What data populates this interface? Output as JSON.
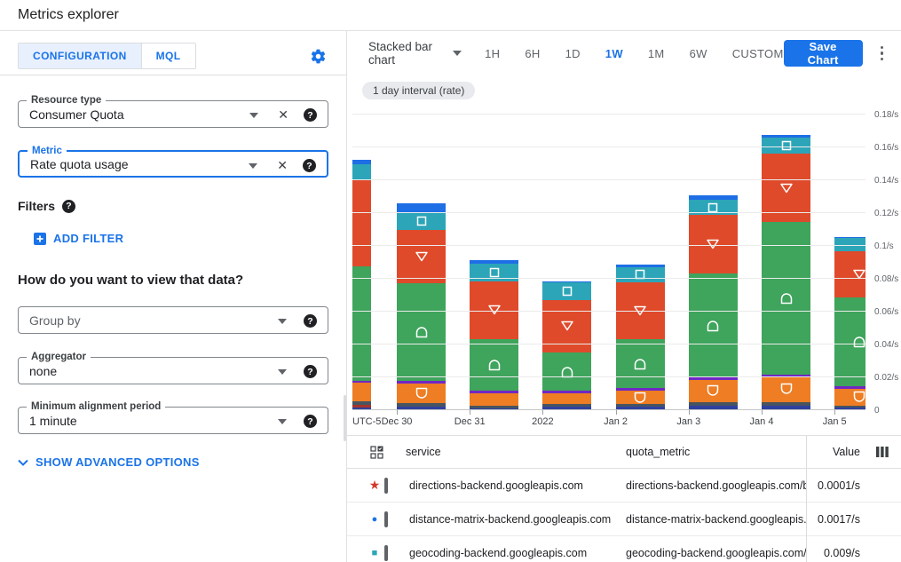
{
  "header": {
    "title": "Metrics explorer"
  },
  "config_panel": {
    "tabs": [
      {
        "label": "CONFIGURATION",
        "active": true
      },
      {
        "label": "MQL",
        "active": false
      }
    ],
    "resource_type": {
      "label": "Resource type",
      "value": "Consumer Quota"
    },
    "metric": {
      "label": "Metric",
      "value": "Rate quota usage"
    },
    "filters_label": "Filters",
    "add_filter_label": "ADD FILTER",
    "view_question": "How do you want to view that data?",
    "group_by": {
      "placeholder": "Group by"
    },
    "aggregator": {
      "label": "Aggregator",
      "value": "none"
    },
    "min_alignment": {
      "label": "Minimum alignment period",
      "value": "1 minute"
    },
    "advanced_label": "SHOW ADVANCED OPTIONS"
  },
  "toolbar": {
    "chart_type": "Stacked bar chart",
    "ranges": [
      "1H",
      "6H",
      "1D",
      "1W",
      "1M",
      "6W",
      "CUSTOM"
    ],
    "active_range": "1W",
    "save_label": "Save Chart"
  },
  "chip": "1 day interval (rate)",
  "icons": {
    "settings": "gear",
    "overflow": "kebab-vertical",
    "help": "question-circle",
    "clear": "x",
    "dropdown": "caret-down",
    "add_filter": "plus-square",
    "advanced": "chevron-down",
    "table_header": "select-series-grid",
    "columns": "column-chooser"
  },
  "colors": {
    "accent": "#1a73e8",
    "tab_active_bg": "#e8f0fe",
    "chip_bg": "#e8eaed"
  },
  "chart_data": {
    "type": "bar",
    "stacked": true,
    "unit": "/s",
    "ylim": [
      0,
      0.18
    ],
    "ytick_labels": [
      "0",
      "0.02/s",
      "0.04/s",
      "0.06/s",
      "0.08/s",
      "0.1/s",
      "0.12/s",
      "0.14/s",
      "0.16/s",
      "0.18/s"
    ],
    "x_prefix_label": "UTC-5",
    "categories": [
      "Dec 30",
      "Dec 31",
      "2022",
      "Jan 2",
      "Jan 3",
      "Jan 4",
      "Jan 5"
    ],
    "grid": true,
    "legend_position": "table-below",
    "series_colors": {
      "navy": "#30409f",
      "darkred": "#a5332b",
      "slate": "#475561",
      "orange": "#ee7d23",
      "purple": "#7127c4",
      "green": "#3fa45c",
      "red": "#df4a2b",
      "teal": "#2ca5b8",
      "blue": "#1e6ee6"
    },
    "bars": [
      {
        "category": "",
        "clipped": "left",
        "segments": [
          [
            "navy",
            0.0015
          ],
          [
            "darkred",
            0.0015
          ],
          [
            "slate",
            0.0025
          ],
          [
            "orange",
            0.011
          ],
          [
            "purple",
            0.0015
          ],
          [
            "green",
            0.0695
          ],
          [
            "red",
            0.053
          ],
          [
            "teal",
            0.009
          ],
          [
            "blue",
            0.003
          ]
        ]
      },
      {
        "category": "Dec 30",
        "segments": [
          [
            "navy",
            0.002
          ],
          [
            "slate",
            0.0022
          ],
          [
            "orange",
            0.0119,
            "shield"
          ],
          [
            "purple",
            0.0016
          ],
          [
            "green",
            0.0595,
            "dome"
          ],
          [
            "red",
            0.0324,
            "triangle-down"
          ],
          [
            "teal",
            0.0108,
            "square"
          ],
          [
            "blue",
            0.0054
          ]
        ]
      },
      {
        "category": "Dec 31",
        "segments": [
          [
            "navy",
            0.0013
          ],
          [
            "slate",
            0.0016
          ],
          [
            "orange",
            0.0076
          ],
          [
            "purple",
            0.0016
          ],
          [
            "green",
            0.0312,
            "dome"
          ],
          [
            "red",
            0.0351,
            "triangle-down"
          ],
          [
            "teal",
            0.0108,
            "square"
          ],
          [
            "blue",
            0.0021
          ]
        ]
      },
      {
        "category": "2022",
        "segments": [
          [
            "navy",
            0.002
          ],
          [
            "slate",
            0.0016
          ],
          [
            "orange",
            0.0065
          ],
          [
            "purple",
            0.0016
          ],
          [
            "green",
            0.0232,
            "dome"
          ],
          [
            "red",
            0.0324,
            "triangle-down"
          ],
          [
            "teal",
            0.0103,
            "square"
          ],
          [
            "blue",
            0.001
          ]
        ]
      },
      {
        "category": "Jan 2",
        "segments": [
          [
            "navy",
            0.002
          ],
          [
            "slate",
            0.0016
          ],
          [
            "orange",
            0.0081,
            "shield"
          ],
          [
            "purple",
            0.0016
          ],
          [
            "green",
            0.0297,
            "dome"
          ],
          [
            "red",
            0.0351,
            "triangle-down"
          ],
          [
            "teal",
            0.0092,
            "square"
          ],
          [
            "blue",
            0.0016
          ]
        ]
      },
      {
        "category": "Jan 3",
        "segments": [
          [
            "navy",
            0.0027
          ],
          [
            "slate",
            0.0022
          ],
          [
            "orange",
            0.0135,
            "shield"
          ],
          [
            "purple",
            0.0016
          ],
          [
            "green",
            0.0632,
            "dome"
          ],
          [
            "red",
            0.0357,
            "triangle-down"
          ],
          [
            "teal",
            0.0092,
            "square"
          ],
          [
            "blue",
            0.0027
          ]
        ]
      },
      {
        "category": "Jan 4",
        "segments": [
          [
            "navy",
            0.0027
          ],
          [
            "slate",
            0.0022
          ],
          [
            "orange",
            0.0157,
            "shield"
          ],
          [
            "purple",
            0.0011
          ],
          [
            "green",
            0.0929,
            "dome"
          ],
          [
            "red",
            0.0416,
            "triangle-down"
          ],
          [
            "teal",
            0.0097,
            "square"
          ],
          [
            "blue",
            0.0016
          ]
        ]
      },
      {
        "category": "Jan 5",
        "clipped": "right",
        "segments": [
          [
            "navy",
            0.0016
          ],
          [
            "slate",
            0.0011
          ],
          [
            "orange",
            0.0103,
            "shield"
          ],
          [
            "purple",
            0.0016
          ],
          [
            "green",
            0.054,
            "dome"
          ],
          [
            "red",
            0.0281,
            "triangle-down"
          ],
          [
            "teal",
            0.0081
          ],
          [
            "blue",
            0.0005
          ]
        ]
      }
    ]
  },
  "table": {
    "columns": [
      "service",
      "quota_metric",
      "Value"
    ],
    "rows": [
      {
        "marker": "star",
        "marker_color": "#d2392b",
        "service": "directions-backend.googleapis.com",
        "quota_metric": "directions-backend.googleapis.com/billabl",
        "value": "0.0001/s"
      },
      {
        "marker": "circle",
        "marker_color": "#1a73e8",
        "service": "distance-matrix-backend.googleapis.com",
        "quota_metric": "distance-matrix-backend.googleapis.com/b",
        "value": "0.0017/s"
      },
      {
        "marker": "square",
        "marker_color": "#2ca5b8",
        "service": "geocoding-backend.googleapis.com",
        "quota_metric": "geocoding-backend.googleapis.com/billab",
        "value": "0.009/s"
      }
    ]
  }
}
